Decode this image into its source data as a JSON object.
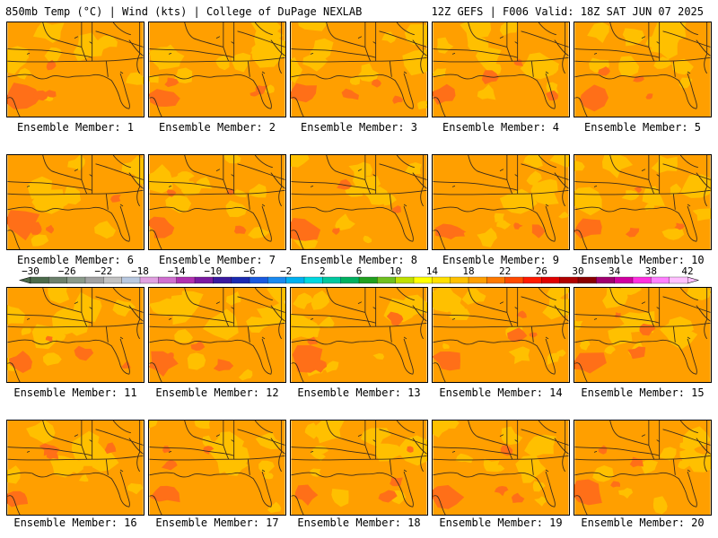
{
  "header": {
    "left": "850mb Temp (°C) | Wind (kts) | College of DuPage NEXLAB",
    "right": "12Z GEFS | F006 Valid: 18Z SAT JUN 07 2025"
  },
  "colors": {
    "field_dominant": "#ff9f00",
    "field_warm_patch": "#ff6f18",
    "field_cool_patch": "#ffc000",
    "border_lines": "#3a2a1a"
  },
  "colorbar": {
    "labels": [
      "−30",
      "−26",
      "−22",
      "−18",
      "−14",
      "−10",
      "−6",
      "−2",
      "2",
      "6",
      "10",
      "14",
      "18",
      "22",
      "26",
      "30",
      "34",
      "38",
      "42"
    ],
    "colors": [
      "#4b6b4b",
      "#6b806b",
      "#8a9a8a",
      "#a2a2a2",
      "#c2c2c2",
      "#b8c8e0",
      "#e0a0e0",
      "#d070d0",
      "#b030b0",
      "#7a1aa0",
      "#3a1aa0",
      "#1a2ab0",
      "#1a5ae0",
      "#1a8af0",
      "#00b0f0",
      "#00d8e0",
      "#00c8a0",
      "#00b060",
      "#20a020",
      "#70c020",
      "#c0e000",
      "#ffff00",
      "#ffe000",
      "#ffc000",
      "#ff9f00",
      "#ff7a00",
      "#ff4a00",
      "#ff1a00",
      "#e00000",
      "#b00000",
      "#8a0000",
      "#a00070",
      "#d000a0",
      "#ff30e0",
      "#ff80ff",
      "#ffc0ff"
    ]
  },
  "members": [
    {
      "label": "Ensemble Member: 1"
    },
    {
      "label": "Ensemble Member: 2"
    },
    {
      "label": "Ensemble Member: 3"
    },
    {
      "label": "Ensemble Member: 4"
    },
    {
      "label": "Ensemble Member: 5"
    },
    {
      "label": "Ensemble Member: 6"
    },
    {
      "label": "Ensemble Member: 7"
    },
    {
      "label": "Ensemble Member: 8"
    },
    {
      "label": "Ensemble Member: 9"
    },
    {
      "label": "Ensemble Member: 10"
    },
    {
      "label": "Ensemble Member: 11"
    },
    {
      "label": "Ensemble Member: 12"
    },
    {
      "label": "Ensemble Member: 13"
    },
    {
      "label": "Ensemble Member: 14"
    },
    {
      "label": "Ensemble Member: 15"
    },
    {
      "label": "Ensemble Member: 16"
    },
    {
      "label": "Ensemble Member: 17"
    },
    {
      "label": "Ensemble Member: 18"
    },
    {
      "label": "Ensemble Member: 19"
    },
    {
      "label": "Ensemble Member: 20"
    }
  ]
}
